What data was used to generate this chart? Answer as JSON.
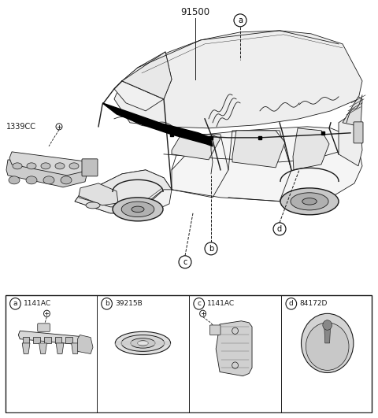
{
  "main_label": "91500",
  "part_label_1339CC": "1339CC",
  "callouts": [
    "a",
    "b",
    "c",
    "d"
  ],
  "sub_labels": {
    "a": "1141AC",
    "b": "39215B",
    "c": "1141AC",
    "d": "84172D"
  },
  "bg_color": "#ffffff",
  "lc": "#1a1a1a",
  "fig_width": 4.8,
  "fig_height": 5.31,
  "dpi": 100,
  "car_body_color": "#f8f8f8",
  "car_roof_color": "#f0f0f0",
  "window_color": "#eeeeee"
}
